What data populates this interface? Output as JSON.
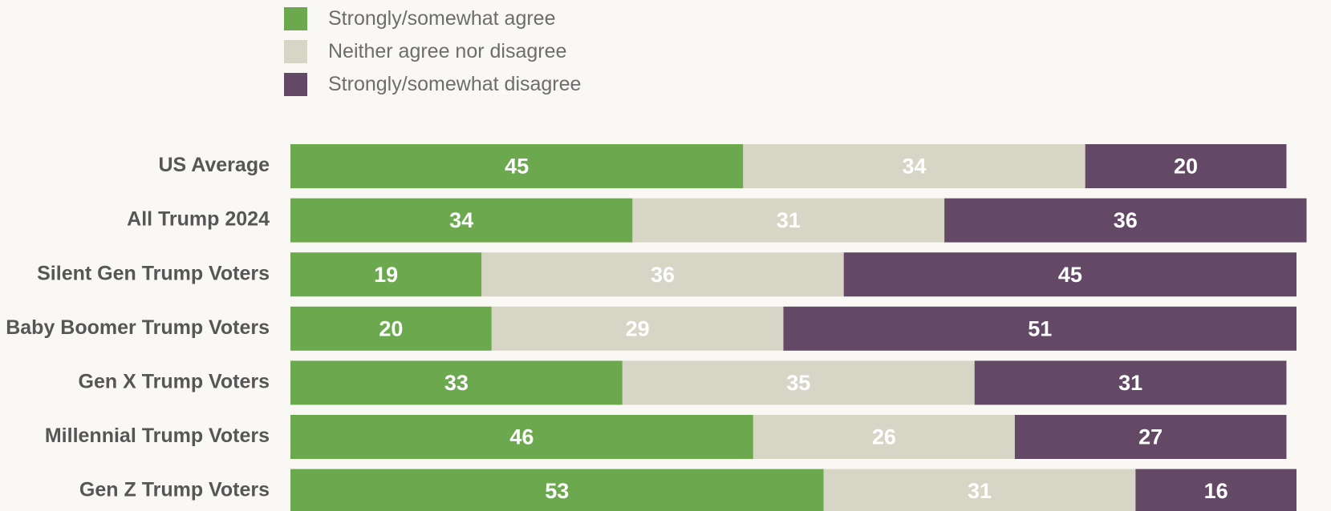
{
  "chart_data": {
    "type": "bar",
    "orientation": "horizontal",
    "stacked": true,
    "title": "",
    "xlabel": "",
    "ylabel": "",
    "xlim": [
      0,
      100
    ],
    "grid": false,
    "legend_placement": "top-left",
    "categories": [
      "US Average",
      "All Trump 2024",
      "Silent Gen Trump Voters",
      "Baby Boomer Trump Voters",
      "Gen X Trump Voters",
      "Millennial Trump Voters",
      "Gen Z Trump Voters"
    ],
    "series": [
      {
        "name": "Strongly/somewhat agree",
        "color": "#6ca84e",
        "values": [
          45,
          34,
          19,
          20,
          33,
          46,
          53
        ]
      },
      {
        "name": "Neither agree nor disagree",
        "color": "#d7d5c5",
        "values": [
          34,
          31,
          36,
          29,
          35,
          26,
          31
        ]
      },
      {
        "name": "Strongly/somewhat disagree",
        "color": "#634966",
        "values": [
          20,
          36,
          45,
          51,
          31,
          27,
          16
        ]
      }
    ]
  },
  "colors": {
    "background": "#f9f8f4",
    "value_label": "#ffffff",
    "category_label": "#565656",
    "legend_text": "#6d6d6d"
  }
}
